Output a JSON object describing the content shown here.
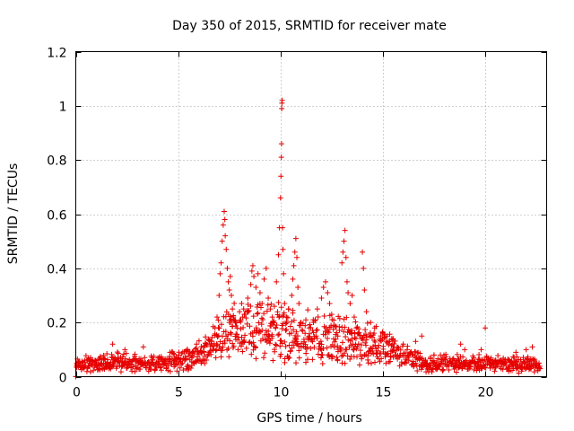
{
  "chart_data": {
    "type": "scatter",
    "title": "Day 350 of 2015, SRMTID for receiver mate",
    "xlabel": "GPS time / hours",
    "ylabel": "SRMTID / TECUs",
    "xlim": [
      0,
      23
    ],
    "ylim": [
      0,
      1.2
    ],
    "xticks": [
      "0",
      "5",
      "10",
      "15",
      "20"
    ],
    "yticks": [
      "0",
      "0.2",
      "0.4",
      "0.6",
      "0.8",
      "1",
      "1.2"
    ],
    "grid": true,
    "marker": "plus",
    "color": "#e60000",
    "baseline_profile": [
      [
        0.0,
        0.045
      ],
      [
        1.0,
        0.05
      ],
      [
        2.0,
        0.055
      ],
      [
        3.0,
        0.05
      ],
      [
        4.0,
        0.05
      ],
      [
        5.0,
        0.06
      ],
      [
        6.0,
        0.08
      ],
      [
        6.5,
        0.1
      ],
      [
        7.0,
        0.14
      ],
      [
        7.5,
        0.16
      ],
      [
        8.0,
        0.17
      ],
      [
        8.5,
        0.18
      ],
      [
        9.0,
        0.18
      ],
      [
        9.5,
        0.18
      ],
      [
        10.0,
        0.17
      ],
      [
        10.5,
        0.16
      ],
      [
        11.0,
        0.15
      ],
      [
        11.5,
        0.15
      ],
      [
        12.0,
        0.14
      ],
      [
        12.5,
        0.14
      ],
      [
        13.0,
        0.14
      ],
      [
        13.5,
        0.13
      ],
      [
        14.0,
        0.12
      ],
      [
        15.0,
        0.11
      ],
      [
        16.0,
        0.08
      ],
      [
        17.0,
        0.05
      ],
      [
        18.0,
        0.05
      ],
      [
        19.0,
        0.05
      ],
      [
        20.0,
        0.05
      ],
      [
        21.0,
        0.045
      ],
      [
        22.0,
        0.045
      ],
      [
        22.7,
        0.045
      ]
    ],
    "series": [
      {
        "name": "SRMTID",
        "points": [
          [
            0.0,
            0.0
          ],
          [
            0.05,
            0.05
          ],
          [
            1.8,
            0.12
          ],
          [
            2.4,
            0.1
          ],
          [
            3.3,
            0.11
          ],
          [
            4.6,
            0.09
          ],
          [
            5.9,
            0.12
          ],
          [
            6.6,
            0.13
          ],
          [
            6.8,
            0.18
          ],
          [
            6.9,
            0.22
          ],
          [
            7.0,
            0.3
          ],
          [
            7.05,
            0.38
          ],
          [
            7.1,
            0.42
          ],
          [
            7.15,
            0.5
          ],
          [
            7.2,
            0.56
          ],
          [
            7.25,
            0.61
          ],
          [
            7.28,
            0.58
          ],
          [
            7.3,
            0.52
          ],
          [
            7.35,
            0.47
          ],
          [
            7.4,
            0.4
          ],
          [
            7.45,
            0.35
          ],
          [
            7.5,
            0.32
          ],
          [
            7.55,
            0.37
          ],
          [
            7.6,
            0.3
          ],
          [
            7.65,
            0.25
          ],
          [
            7.7,
            0.22
          ],
          [
            7.8,
            0.2
          ],
          [
            8.0,
            0.24
          ],
          [
            8.1,
            0.27
          ],
          [
            8.2,
            0.25
          ],
          [
            8.4,
            0.29
          ],
          [
            8.55,
            0.34
          ],
          [
            8.6,
            0.39
          ],
          [
            8.65,
            0.41
          ],
          [
            8.7,
            0.37
          ],
          [
            8.8,
            0.33
          ],
          [
            8.9,
            0.38
          ],
          [
            9.0,
            0.31
          ],
          [
            9.1,
            0.27
          ],
          [
            9.2,
            0.36
          ],
          [
            9.3,
            0.4
          ],
          [
            9.4,
            0.29
          ],
          [
            9.5,
            0.25
          ],
          [
            9.6,
            0.22
          ],
          [
            9.7,
            0.26
          ],
          [
            9.8,
            0.35
          ],
          [
            9.9,
            0.45
          ],
          [
            9.95,
            0.55
          ],
          [
            10.0,
            0.66
          ],
          [
            10.02,
            0.74
          ],
          [
            10.04,
            0.81
          ],
          [
            10.05,
            0.86
          ],
          [
            10.06,
            0.99
          ],
          [
            10.07,
            1.01
          ],
          [
            10.08,
            1.02
          ],
          [
            10.1,
            0.55
          ],
          [
            10.12,
            0.47
          ],
          [
            10.15,
            0.38
          ],
          [
            10.2,
            0.27
          ],
          [
            10.25,
            0.0
          ],
          [
            10.3,
            0.22
          ],
          [
            10.4,
            0.25
          ],
          [
            10.55,
            0.3
          ],
          [
            10.6,
            0.36
          ],
          [
            10.65,
            0.41
          ],
          [
            10.7,
            0.46
          ],
          [
            10.75,
            0.51
          ],
          [
            10.8,
            0.44
          ],
          [
            10.85,
            0.33
          ],
          [
            10.9,
            0.27
          ],
          [
            11.0,
            0.2
          ],
          [
            11.2,
            0.16
          ],
          [
            11.4,
            0.18
          ],
          [
            11.6,
            0.21
          ],
          [
            11.8,
            0.25
          ],
          [
            12.0,
            0.29
          ],
          [
            12.1,
            0.33
          ],
          [
            12.2,
            0.35
          ],
          [
            12.3,
            0.31
          ],
          [
            12.4,
            0.27
          ],
          [
            12.5,
            0.23
          ],
          [
            12.6,
            0.19
          ],
          [
            12.8,
            0.15
          ],
          [
            13.0,
            0.42
          ],
          [
            13.05,
            0.46
          ],
          [
            13.1,
            0.5
          ],
          [
            13.15,
            0.54
          ],
          [
            13.2,
            0.44
          ],
          [
            13.25,
            0.35
          ],
          [
            13.3,
            0.31
          ],
          [
            13.4,
            0.27
          ],
          [
            13.5,
            0.3
          ],
          [
            13.6,
            0.22
          ],
          [
            13.7,
            0.18
          ],
          [
            13.8,
            0.16
          ],
          [
            14.0,
            0.46
          ],
          [
            14.05,
            0.4
          ],
          [
            14.1,
            0.32
          ],
          [
            14.2,
            0.24
          ],
          [
            14.4,
            0.2
          ],
          [
            14.6,
            0.18
          ],
          [
            15.0,
            0.16
          ],
          [
            15.2,
            0.15
          ],
          [
            15.5,
            0.14
          ],
          [
            16.0,
            0.12
          ],
          [
            16.6,
            0.13
          ],
          [
            16.9,
            0.15
          ],
          [
            17.5,
            0.08
          ],
          [
            18.8,
            0.12
          ],
          [
            19.0,
            0.1
          ],
          [
            19.8,
            0.1
          ],
          [
            20.0,
            0.18
          ],
          [
            21.5,
            0.09
          ],
          [
            22.0,
            0.1
          ],
          [
            22.3,
            0.11
          ]
        ]
      }
    ]
  }
}
